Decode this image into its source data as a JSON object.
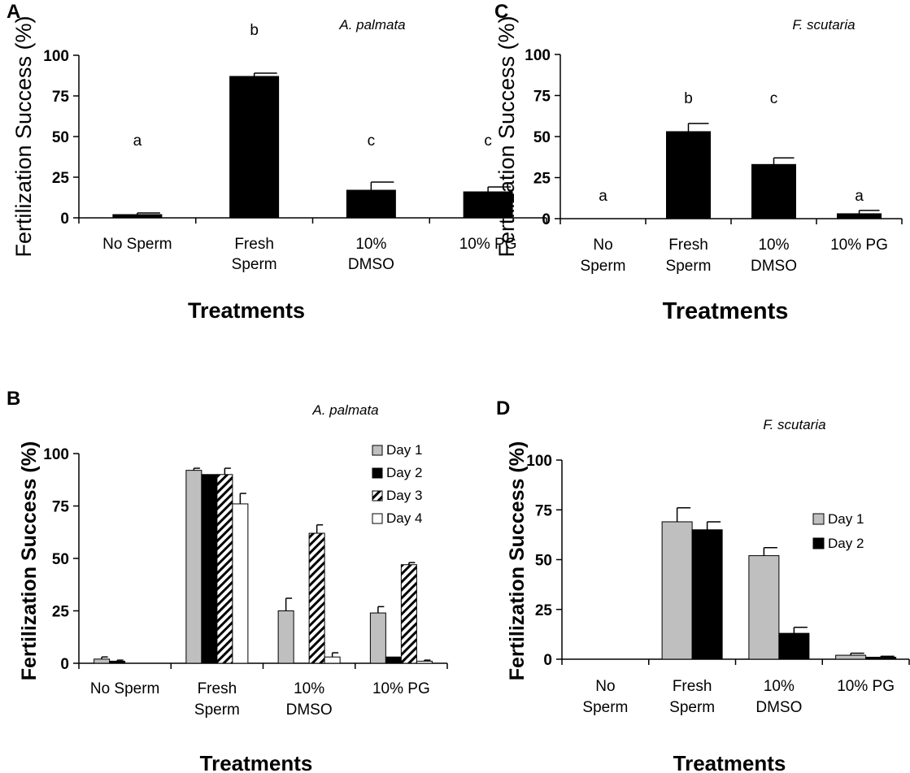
{
  "chart_data": [
    {
      "type": "bar",
      "panel_label": "A",
      "title": "A. palmata",
      "xlabel": "Treatments",
      "ylabel": "Fertilization Success (%)",
      "ylim": [
        0,
        100
      ],
      "yticks": [
        "0",
        "25",
        "50",
        "75",
        "100"
      ],
      "categories": [
        "No Sperm",
        "Fresh\nSperm",
        "10%\nDMSO",
        "10% PG"
      ],
      "series": [
        {
          "name": "",
          "color": "#000000",
          "pattern": "solid",
          "values": [
            2,
            87,
            17,
            16
          ],
          "errors": [
            1,
            2,
            5,
            3
          ]
        }
      ],
      "significance_letters": [
        "a",
        "b",
        "c",
        "c"
      ],
      "legend": null
    },
    {
      "type": "bar",
      "panel_label": "B",
      "title": "A. palmata",
      "xlabel": "Treatments",
      "ylabel": "Fertilization Success (%)",
      "ylim": [
        0,
        100
      ],
      "yticks": [
        "0",
        "25",
        "50",
        "75",
        "100"
      ],
      "categories": [
        "No Sperm",
        "Fresh\nSperm",
        "10%\nDMSO",
        "10% PG"
      ],
      "series": [
        {
          "name": "Day 1",
          "color": "#bfbfbf",
          "pattern": "solid",
          "values": [
            2,
            92,
            25,
            24
          ],
          "errors": [
            1,
            1,
            6,
            3
          ]
        },
        {
          "name": "Day 2",
          "color": "#000000",
          "pattern": "solid",
          "values": [
            1,
            90,
            0,
            3
          ],
          "errors": [
            0.5,
            0,
            0,
            0
          ]
        },
        {
          "name": "Day 3",
          "color": "#ffffff",
          "pattern": "hatch",
          "values": [
            0,
            90,
            62,
            47
          ],
          "errors": [
            0,
            3,
            4,
            1
          ]
        },
        {
          "name": "Day 4",
          "color": "#ffffff",
          "pattern": "solid",
          "values": [
            0,
            76,
            3,
            1
          ],
          "errors": [
            0,
            5,
            2,
            0.5
          ]
        }
      ],
      "significance_letters": null,
      "legend": "top-right"
    },
    {
      "type": "bar",
      "panel_label": "C",
      "title": "F. scutaria",
      "xlabel": "Treatments",
      "ylabel": "Fertilization Success (%)",
      "ylim": [
        0,
        100
      ],
      "yticks": [
        "0",
        "25",
        "50",
        "75",
        "100"
      ],
      "categories": [
        "No\nSperm",
        "Fresh\nSperm",
        "10%\nDMSO",
        "10% PG"
      ],
      "series": [
        {
          "name": "",
          "color": "#000000",
          "pattern": "solid",
          "values": [
            0,
            53,
            33,
            3
          ],
          "errors": [
            0,
            5,
            4,
            2
          ]
        }
      ],
      "significance_letters": [
        "a",
        "b",
        "c",
        "a"
      ],
      "legend": null
    },
    {
      "type": "bar",
      "panel_label": "D",
      "title": "F. scutaria",
      "xlabel": "Treatments",
      "ylabel": "Fertilization Success (%)",
      "ylim": [
        0,
        100
      ],
      "yticks": [
        "0",
        "25",
        "50",
        "75",
        "100"
      ],
      "categories": [
        "No\nSperm",
        "Fresh\nSperm",
        "10%\nDMSO",
        "10% PG"
      ],
      "series": [
        {
          "name": "Day 1",
          "color": "#bfbfbf",
          "pattern": "solid",
          "values": [
            0,
            69,
            52,
            2
          ],
          "errors": [
            0,
            7,
            4,
            1
          ]
        },
        {
          "name": "Day 2",
          "color": "#000000",
          "pattern": "solid",
          "values": [
            0,
            65,
            13,
            1
          ],
          "errors": [
            0,
            4,
            3,
            0.5
          ]
        }
      ],
      "significance_letters": null,
      "legend": "right"
    }
  ]
}
